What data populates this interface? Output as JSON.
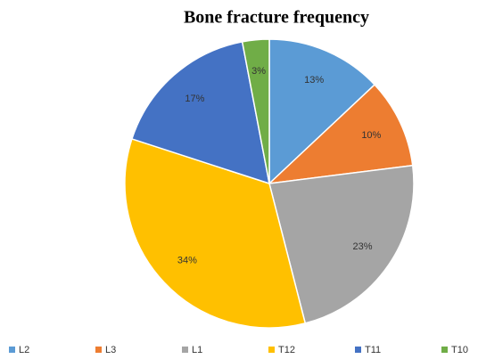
{
  "chart_data": {
    "type": "pie",
    "title": "Bone fracture frequency",
    "categories": [
      "L2",
      "L3",
      "L1",
      "T12",
      "T11",
      "T10"
    ],
    "values": [
      13,
      10,
      23,
      34,
      17,
      3
    ],
    "value_labels": [
      "13%",
      "10%",
      "23%",
      "34%",
      "17%",
      "3%"
    ],
    "colors": [
      "#5b9bd5",
      "#ed7d31",
      "#a5a5a5",
      "#ffc000",
      "#4472c4",
      "#70ad47"
    ],
    "legend": "bottom"
  }
}
